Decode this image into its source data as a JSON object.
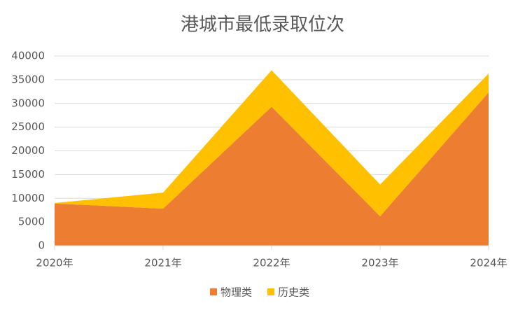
{
  "chart_data": {
    "type": "stacked_area",
    "title": "港城市最低录取位次",
    "categories": [
      "2020年",
      "2021年",
      "2022年",
      "2023年",
      "2024年"
    ],
    "series": [
      {
        "name": "物理类",
        "color": "#ed7d31",
        "values": [
          8900,
          7800,
          29300,
          6200,
          32300
        ]
      },
      {
        "name": "历史类",
        "color": "#ffc000",
        "values": [
          100,
          3400,
          7700,
          6700,
          4000
        ]
      }
    ],
    "ylim": [
      0,
      40000
    ],
    "yticks": [
      0,
      5000,
      10000,
      15000,
      20000,
      25000,
      30000,
      35000,
      40000
    ],
    "grid": true,
    "legend": "bottom"
  }
}
